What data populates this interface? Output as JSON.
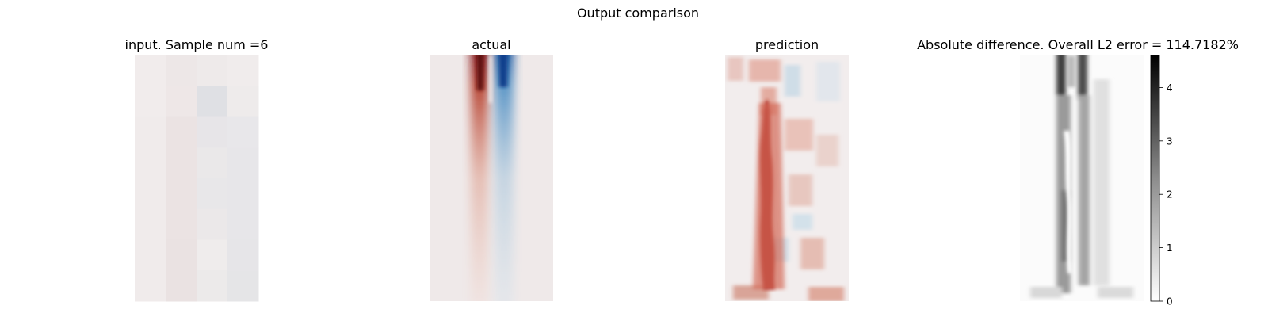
{
  "figure": {
    "suptitle": "Output comparison"
  },
  "chart_data": [
    {
      "type": "heatmap",
      "title": "input. Sample num =6",
      "grid": false,
      "axes_visible": false,
      "colormap": "red-white-blue diverging",
      "grid_shape": [
        8,
        4
      ],
      "note": "coarse 4x8 input field, values near zero (pale cells)"
    },
    {
      "type": "heatmap",
      "title": "actual",
      "grid": false,
      "axes_visible": false,
      "colormap": "red-white-blue diverging",
      "features": [
        {
          "name": "positive band",
          "color": "#8b1a1a"
        },
        {
          "name": "negative band",
          "color": "#1f5fa8"
        }
      ]
    },
    {
      "type": "heatmap",
      "title": "prediction",
      "grid": false,
      "axes_visible": false,
      "colormap": "red-white-blue diverging",
      "features": [
        {
          "name": "positive band",
          "color": "#a8231d"
        }
      ]
    },
    {
      "type": "heatmap",
      "title": "Absolute difference. Overall L2 error = 114.7182%",
      "grid": false,
      "axes_visible": false,
      "colormap": "greys",
      "colorbar": {
        "ticks": [
          "0",
          "1",
          "2",
          "3",
          "4"
        ],
        "tick_values": [
          0,
          1,
          2,
          3,
          4
        ],
        "range": [
          0,
          4.6
        ]
      }
    }
  ]
}
